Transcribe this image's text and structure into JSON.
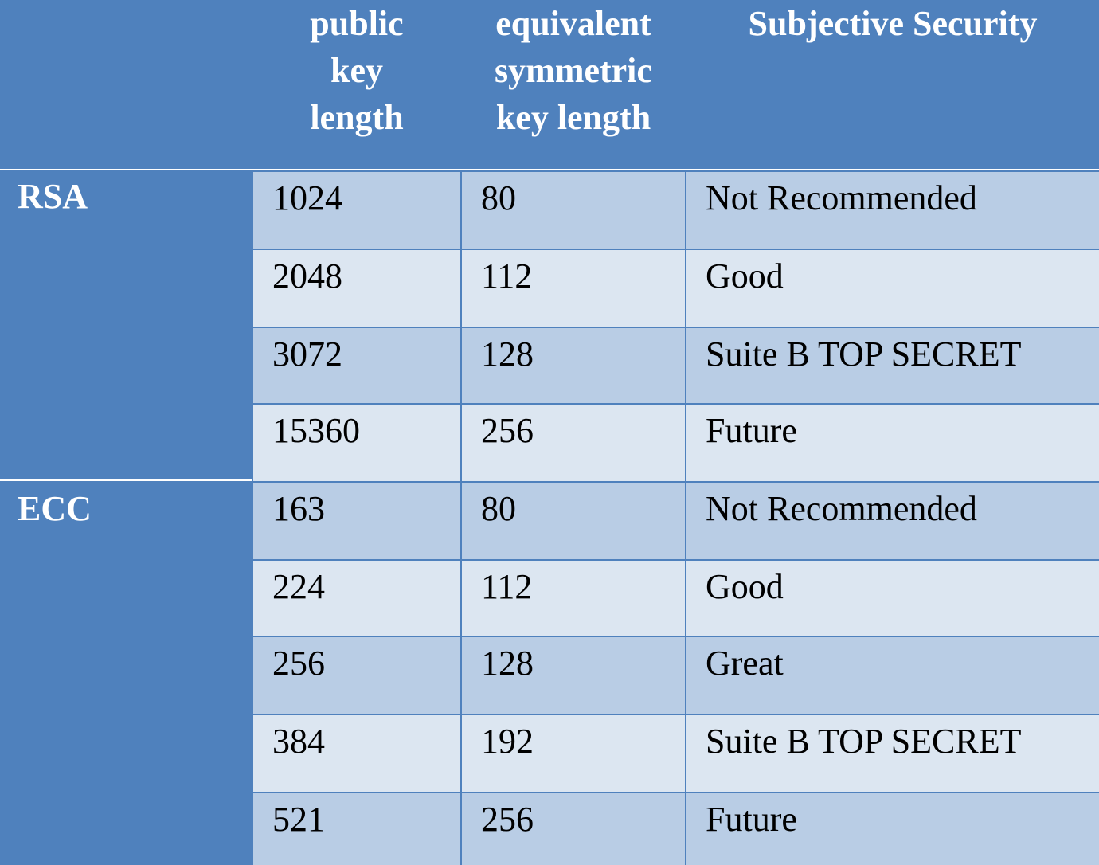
{
  "header": {
    "col1": [
      "public",
      "key",
      "length"
    ],
    "col2": [
      "equivalent",
      "symmetric",
      "key length"
    ],
    "col3": [
      "Subjective Security"
    ]
  },
  "groups": [
    {
      "label": "RSA",
      "rows": [
        {
          "public_key_length": "1024",
          "symmetric_key_length": "80",
          "security": "Not Recommended"
        },
        {
          "public_key_length": "2048",
          "symmetric_key_length": "112",
          "security": "Good"
        },
        {
          "public_key_length": "3072",
          "symmetric_key_length": "128",
          "security": "Suite B TOP SECRET"
        },
        {
          "public_key_length": "15360",
          "symmetric_key_length": "256",
          "security": "Future"
        }
      ]
    },
    {
      "label": "ECC",
      "rows": [
        {
          "public_key_length": "163",
          "symmetric_key_length": "80",
          "security": "Not Recommended"
        },
        {
          "public_key_length": "224",
          "symmetric_key_length": "112",
          "security": "Good"
        },
        {
          "public_key_length": "256",
          "symmetric_key_length": "128",
          "security": "Great"
        },
        {
          "public_key_length": "384",
          "symmetric_key_length": "192",
          "security": "Suite B TOP SECRET"
        },
        {
          "public_key_length": "521",
          "symmetric_key_length": "256",
          "security": "Future"
        }
      ]
    }
  ],
  "colors": {
    "header_blue": "#4f81bd",
    "row_dark": "#b9cde5",
    "row_light": "#dce6f1",
    "divider": "#ffffff"
  }
}
